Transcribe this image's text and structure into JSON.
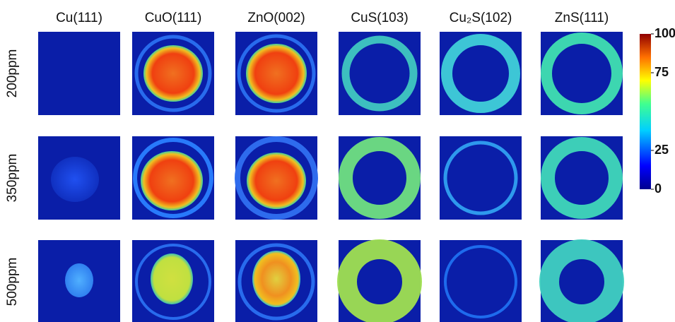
{
  "column_labels": [
    "Cu(111)",
    "CuO(111)",
    "ZnO(002)",
    "CuS(103)",
    "Cu₂S(102)",
    "ZnS(111)"
  ],
  "row_labels": [
    "200ppm",
    "350ppm",
    "500ppm"
  ],
  "colorbar": {
    "lim": [
      0,
      100
    ],
    "ticks": [
      0,
      25,
      75,
      100
    ]
  }
}
